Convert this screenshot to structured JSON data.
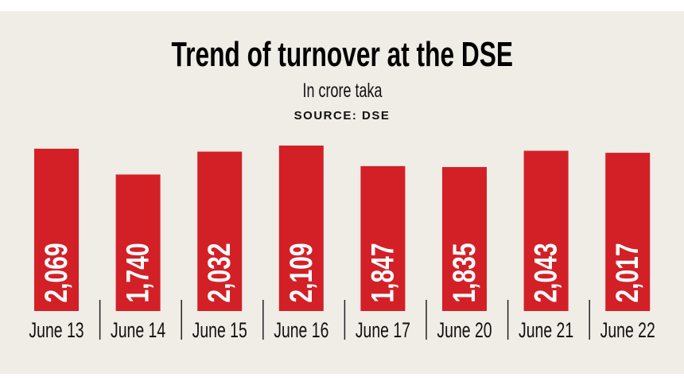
{
  "chart_data": {
    "type": "bar",
    "title": "Trend of turnover at the DSE",
    "subtitle": "In crore taka",
    "source": "SOURCE: DSE",
    "categories": [
      "June 13",
      "June 14",
      "June 15",
      "June 16",
      "June 17",
      "June 20",
      "June 21",
      "June 22"
    ],
    "values": [
      2069,
      1740,
      2032,
      2109,
      1847,
      1835,
      2043,
      2017
    ],
    "value_labels": [
      "2,069",
      "1,740",
      "2,032",
      "2,109",
      "1,847",
      "1,835",
      "2,043",
      "2,017"
    ],
    "xlabel": "",
    "ylabel": "",
    "ylim": [
      0,
      2109
    ],
    "grid": false,
    "bar_color": "#d32027",
    "label_color": "#ffffff"
  }
}
